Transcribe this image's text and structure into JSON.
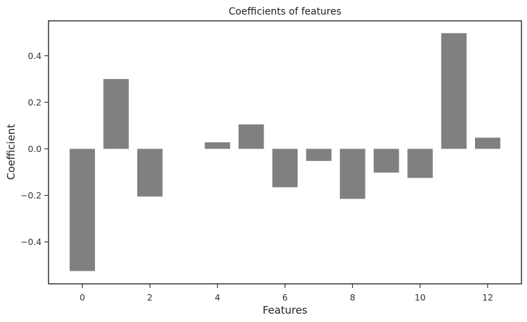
{
  "chart_data": {
    "type": "bar",
    "title": "Coefficients of features",
    "xlabel": "Features",
    "ylabel": "Coefficient",
    "categories": [
      0,
      1,
      2,
      3,
      4,
      5,
      6,
      7,
      8,
      9,
      10,
      11,
      12
    ],
    "values": [
      -0.525,
      0.3,
      -0.205,
      0.0,
      0.028,
      0.105,
      -0.165,
      -0.052,
      -0.215,
      -0.102,
      -0.125,
      0.497,
      0.048
    ],
    "xlim": [
      -1,
      13
    ],
    "ylim": [
      -0.58,
      0.55
    ],
    "xticks": [
      0,
      2,
      4,
      6,
      8,
      10,
      12
    ],
    "xtick_labels": [
      "0",
      "2",
      "4",
      "6",
      "8",
      "10",
      "12"
    ],
    "yticks": [
      -0.4,
      -0.2,
      0.0,
      0.2,
      0.4
    ],
    "ytick_labels": [
      "−0.4",
      "−0.2",
      "0.0",
      "0.2",
      "0.4"
    ],
    "bar_color": "#808080",
    "grid": false
  }
}
